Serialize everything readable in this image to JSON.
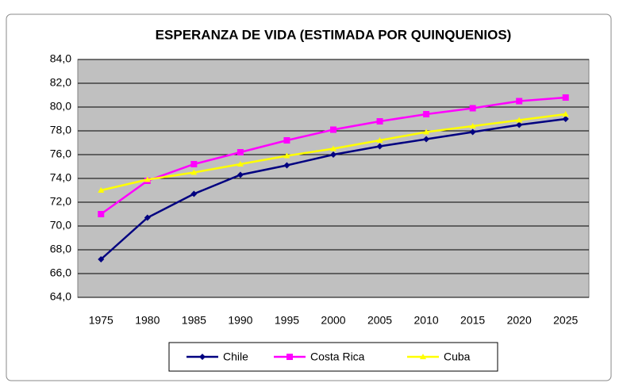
{
  "chart_data": {
    "type": "line",
    "title": "ESPERANZA DE VIDA (ESTIMADA POR QUINQUENIOS)",
    "categories": [
      "1975",
      "1980",
      "1985",
      "1990",
      "1995",
      "2000",
      "2005",
      "2010",
      "2015",
      "2020",
      "2025"
    ],
    "series": [
      {
        "name": "Chile",
        "color": "#000080",
        "marker": "diamond",
        "values": [
          67.2,
          70.7,
          72.7,
          74.3,
          75.1,
          76.0,
          76.7,
          77.3,
          77.9,
          78.5,
          79.0
        ]
      },
      {
        "name": "Costa Rica",
        "color": "#ff00ff",
        "marker": "square",
        "values": [
          71.0,
          73.8,
          75.2,
          76.2,
          77.2,
          78.1,
          78.8,
          79.4,
          79.9,
          80.5,
          80.8
        ]
      },
      {
        "name": "Cuba",
        "color": "#ffff00",
        "marker": "triangle",
        "values": [
          73.0,
          73.9,
          74.5,
          75.2,
          75.9,
          76.5,
          77.2,
          77.9,
          78.4,
          78.9,
          79.4
        ]
      }
    ],
    "ylim": [
      64,
      84
    ],
    "yticks": [
      {
        "value": 64,
        "label": "64,0"
      },
      {
        "value": 66,
        "label": "66,0"
      },
      {
        "value": 68,
        "label": "68,0"
      },
      {
        "value": 70,
        "label": "70,0"
      },
      {
        "value": 72,
        "label": "72,0"
      },
      {
        "value": 74,
        "label": "74,0"
      },
      {
        "value": 76,
        "label": "76,0"
      },
      {
        "value": 78,
        "label": "78,0"
      },
      {
        "value": 80,
        "label": "80,0"
      },
      {
        "value": 82,
        "label": "82,0"
      },
      {
        "value": 84,
        "label": "84,0"
      }
    ],
    "grid": true,
    "plot_background": "#c0c0c0",
    "legend": "bottom"
  }
}
